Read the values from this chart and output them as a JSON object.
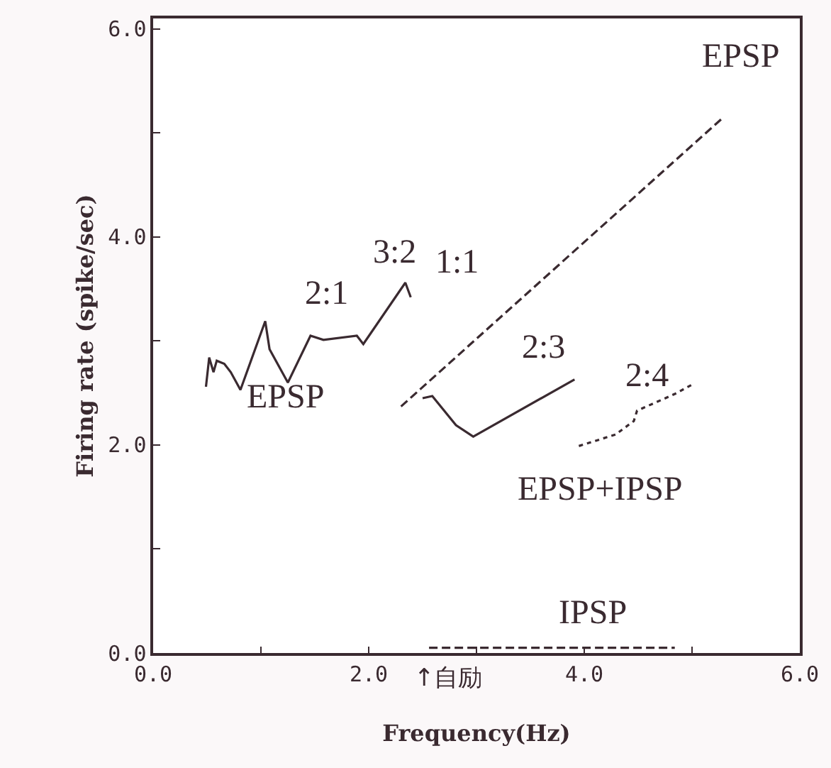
{
  "chart_data": {
    "type": "line",
    "xlabel": "Frequency(Hz)",
    "ylabel": "Firing rate (spike/sec)",
    "xlim": [
      0,
      6
    ],
    "ylim": [
      0,
      6.1
    ],
    "xticks": [
      {
        "value": 0,
        "label": "0.0"
      },
      {
        "value": 1,
        "label": null
      },
      {
        "value": 2,
        "label": "2.0"
      },
      {
        "value": 3,
        "label": null
      },
      {
        "value": 4,
        "label": "4.0"
      },
      {
        "value": 5,
        "label": null
      },
      {
        "value": 6,
        "label": "6.0"
      }
    ],
    "yticks": [
      {
        "value": 0,
        "label": "0.0"
      },
      {
        "value": 1,
        "label": null
      },
      {
        "value": 2,
        "label": "2.0"
      },
      {
        "value": 3,
        "label": null
      },
      {
        "value": 4,
        "label": "4.0"
      },
      {
        "value": 5,
        "label": null
      },
      {
        "value": 6,
        "label": "6.0"
      }
    ],
    "grid": false,
    "marker": "none",
    "series": [
      {
        "color": "#3a2a30",
        "line_style": "solid",
        "x": [
          0.49,
          0.52,
          0.56,
          0.59,
          0.66,
          0.72,
          0.81,
          1.04,
          1.08,
          1.25,
          1.46,
          1.58,
          1.89,
          1.95,
          2.34,
          2.39
        ],
        "values": [
          2.56,
          2.84,
          2.7,
          2.81,
          2.78,
          2.7,
          2.53,
          3.19,
          2.92,
          2.6,
          3.05,
          3.01,
          3.05,
          2.97,
          3.56,
          3.42
        ]
      },
      {
        "color": "#3a2a30",
        "line_style": "dashed",
        "x": [
          2.3,
          5.28
        ],
        "values": [
          2.37,
          5.14
        ]
      },
      {
        "color": "#3a2a30",
        "line_style": "solid",
        "x": [
          2.5,
          2.59,
          2.81,
          2.97,
          3.91
        ],
        "values": [
          2.45,
          2.47,
          2.19,
          2.08,
          2.63
        ]
      },
      {
        "color": "#3a2a30",
        "line_style": "dotted",
        "x": [
          3.95,
          4.29,
          4.46,
          4.49,
          4.84,
          5.0
        ],
        "values": [
          1.99,
          2.1,
          2.23,
          2.33,
          2.49,
          2.58
        ]
      },
      {
        "color": "#3a2a30",
        "line_style": "dashed",
        "x": [
          2.56,
          4.84
        ],
        "values": [
          0.05,
          0.05
        ]
      }
    ],
    "annotations": [
      "EPSP",
      "1:1",
      "3:2",
      "2:1",
      "EPSP",
      "2:3",
      "2:4",
      "EPSP+IPSP",
      "IPSP",
      "↑自励"
    ]
  }
}
